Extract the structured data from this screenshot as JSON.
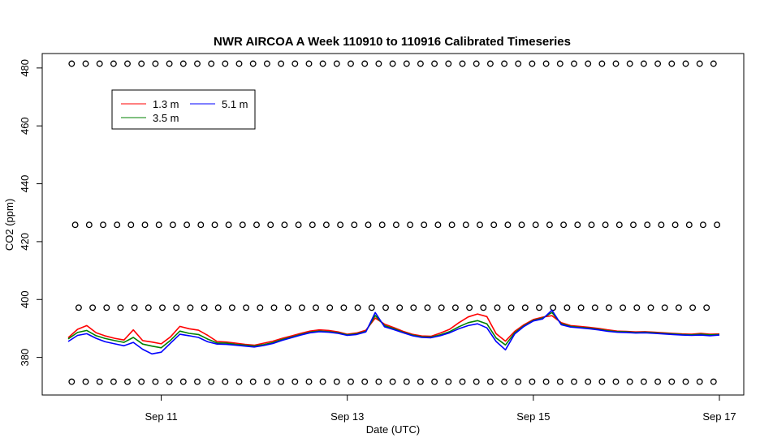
{
  "chart_data": {
    "type": "line",
    "title": "NWR AIRCOA A  Week 110910 to 110916  Calibrated Timeseries",
    "xlabel": "Date (UTC)",
    "ylabel": "CO2 (ppm)",
    "xlim": [
      "2011-09-10 00:00",
      "2011-09-17 00:00"
    ],
    "ylim": [
      367,
      485
    ],
    "x_ticks": [
      {
        "value": "2011-09-11",
        "label": "Sep 11"
      },
      {
        "value": "2011-09-13",
        "label": "Sep 13"
      },
      {
        "value": "2011-09-15",
        "label": "Sep 15"
      },
      {
        "value": "2011-09-17",
        "label": "Sep 17"
      }
    ],
    "y_ticks": [
      380,
      400,
      420,
      440,
      460,
      480
    ],
    "grid": false,
    "legend": {
      "position": "top-left",
      "entries": [
        {
          "label": "1.3 m",
          "color": "#ff0000"
        },
        {
          "label": "3.5 m",
          "color": "#008000"
        },
        {
          "label": "5.1 m",
          "color": "#0000ff"
        }
      ]
    },
    "reference_points": {
      "marker": "open-circle",
      "color": "#000000",
      "levels_ppm": [
        481.5,
        425.8,
        397.2,
        371.6
      ]
    },
    "series": [
      {
        "name": "1.3 m",
        "color": "#ff0000",
        "points": [
          [
            "2011-09-10 00:00",
            386.8
          ],
          [
            "2011-09-10 02:24",
            389.7
          ],
          [
            "2011-09-10 04:48",
            391.0
          ],
          [
            "2011-09-10 07:12",
            388.5
          ],
          [
            "2011-09-10 09:36",
            387.4
          ],
          [
            "2011-09-10 12:00",
            386.6
          ],
          [
            "2011-09-10 14:24",
            386.0
          ],
          [
            "2011-09-10 16:48",
            389.5
          ],
          [
            "2011-09-10 19:12",
            385.8
          ],
          [
            "2011-09-10 21:36",
            385.3
          ],
          [
            "2011-09-11 00:00",
            384.7
          ],
          [
            "2011-09-11 02:24",
            387.1
          ],
          [
            "2011-09-11 04:48",
            390.7
          ],
          [
            "2011-09-11 07:12",
            389.9
          ],
          [
            "2011-09-11 09:36",
            389.4
          ],
          [
            "2011-09-11 12:00",
            387.6
          ],
          [
            "2011-09-11 14:24",
            385.5
          ],
          [
            "2011-09-11 16:48",
            385.3
          ],
          [
            "2011-09-11 19:12",
            384.9
          ],
          [
            "2011-09-11 21:36",
            384.5
          ],
          [
            "2011-09-12 00:00",
            384.2
          ],
          [
            "2011-09-12 02:24",
            384.9
          ],
          [
            "2011-09-12 04:48",
            385.6
          ],
          [
            "2011-09-12 07:12",
            386.6
          ],
          [
            "2011-09-12 09:36",
            387.4
          ],
          [
            "2011-09-12 12:00",
            388.3
          ],
          [
            "2011-09-12 14:24",
            389.1
          ],
          [
            "2011-09-12 16:48",
            389.5
          ],
          [
            "2011-09-12 19:12",
            389.3
          ],
          [
            "2011-09-12 21:36",
            388.8
          ],
          [
            "2011-09-13 00:00",
            388.0
          ],
          [
            "2011-09-13 02:24",
            388.4
          ],
          [
            "2011-09-13 04:48",
            389.4
          ],
          [
            "2011-09-13 07:12",
            393.6
          ],
          [
            "2011-09-13 09:36",
            391.5
          ],
          [
            "2011-09-13 12:00",
            390.3
          ],
          [
            "2011-09-13 14:24",
            389.0
          ],
          [
            "2011-09-13 16:48",
            388.0
          ],
          [
            "2011-09-13 19:12",
            387.4
          ],
          [
            "2011-09-13 21:36",
            387.3
          ],
          [
            "2011-09-14 00:00",
            388.4
          ],
          [
            "2011-09-14 02:24",
            389.7
          ],
          [
            "2011-09-14 04:48",
            392.0
          ],
          [
            "2011-09-14 07:12",
            394.0
          ],
          [
            "2011-09-14 09:36",
            395.0
          ],
          [
            "2011-09-14 12:00",
            394.1
          ],
          [
            "2011-09-14 14:24",
            388.2
          ],
          [
            "2011-09-14 16:48",
            385.6
          ],
          [
            "2011-09-14 19:12",
            389.0
          ],
          [
            "2011-09-14 21:36",
            391.3
          ],
          [
            "2011-09-15 00:00",
            393.1
          ],
          [
            "2011-09-15 02:24",
            393.9
          ],
          [
            "2011-09-15 04:48",
            394.4
          ],
          [
            "2011-09-15 07:12",
            392.0
          ],
          [
            "2011-09-15 09:36",
            391.0
          ],
          [
            "2011-09-15 12:00",
            390.7
          ],
          [
            "2011-09-15 14:24",
            390.4
          ],
          [
            "2011-09-15 16:48",
            390.0
          ],
          [
            "2011-09-15 19:12",
            389.5
          ],
          [
            "2011-09-15 21:36",
            389.1
          ],
          [
            "2011-09-16 00:00",
            389.0
          ],
          [
            "2011-09-16 02:24",
            388.8
          ],
          [
            "2011-09-16 04:48",
            388.9
          ],
          [
            "2011-09-16 07:12",
            388.7
          ],
          [
            "2011-09-16 09:36",
            388.5
          ],
          [
            "2011-09-16 12:00",
            388.3
          ],
          [
            "2011-09-16 14:24",
            388.1
          ],
          [
            "2011-09-16 16:48",
            388.0
          ],
          [
            "2011-09-16 19:12",
            388.3
          ],
          [
            "2011-09-16 21:36",
            388.0
          ],
          [
            "2011-09-17 00:00",
            388.1
          ]
        ]
      },
      {
        "name": "3.5 m",
        "color": "#008000",
        "points": [
          [
            "2011-09-10 00:00",
            386.4
          ],
          [
            "2011-09-10 02:24",
            388.6
          ],
          [
            "2011-09-10 04:48",
            389.3
          ],
          [
            "2011-09-10 07:12",
            387.5
          ],
          [
            "2011-09-10 09:36",
            386.5
          ],
          [
            "2011-09-10 12:00",
            385.8
          ],
          [
            "2011-09-10 14:24",
            385.2
          ],
          [
            "2011-09-10 16:48",
            386.9
          ],
          [
            "2011-09-10 19:12",
            384.6
          ],
          [
            "2011-09-10 21:36",
            383.9
          ],
          [
            "2011-09-11 00:00",
            383.3
          ],
          [
            "2011-09-11 02:24",
            385.9
          ],
          [
            "2011-09-11 04:48",
            389.1
          ],
          [
            "2011-09-11 07:12",
            388.3
          ],
          [
            "2011-09-11 09:36",
            387.9
          ],
          [
            "2011-09-11 12:00",
            386.3
          ],
          [
            "2011-09-11 14:24",
            385.0
          ],
          [
            "2011-09-11 16:48",
            384.9
          ],
          [
            "2011-09-11 19:12",
            384.5
          ],
          [
            "2011-09-11 21:36",
            384.2
          ],
          [
            "2011-09-12 00:00",
            383.9
          ],
          [
            "2011-09-12 02:24",
            384.4
          ],
          [
            "2011-09-12 04:48",
            385.1
          ],
          [
            "2011-09-12 07:12",
            386.2
          ],
          [
            "2011-09-12 09:36",
            387.0
          ],
          [
            "2011-09-12 12:00",
            387.9
          ],
          [
            "2011-09-12 14:24",
            388.7
          ],
          [
            "2011-09-12 16:48",
            389.1
          ],
          [
            "2011-09-12 19:12",
            388.9
          ],
          [
            "2011-09-12 21:36",
            388.5
          ],
          [
            "2011-09-13 00:00",
            387.8
          ],
          [
            "2011-09-13 02:24",
            388.1
          ],
          [
            "2011-09-13 04:48",
            389.0
          ],
          [
            "2011-09-13 07:12",
            394.5
          ],
          [
            "2011-09-13 09:36",
            391.0
          ],
          [
            "2011-09-13 12:00",
            389.9
          ],
          [
            "2011-09-13 14:24",
            388.7
          ],
          [
            "2011-09-13 16:48",
            387.7
          ],
          [
            "2011-09-13 19:12",
            387.1
          ],
          [
            "2011-09-13 21:36",
            387.0
          ],
          [
            "2011-09-14 00:00",
            387.8
          ],
          [
            "2011-09-14 02:24",
            388.9
          ],
          [
            "2011-09-14 04:48",
            390.6
          ],
          [
            "2011-09-14 07:12",
            392.0
          ],
          [
            "2011-09-14 09:36",
            392.7
          ],
          [
            "2011-09-14 12:00",
            391.6
          ],
          [
            "2011-09-14 14:24",
            386.7
          ],
          [
            "2011-09-14 16:48",
            384.3
          ],
          [
            "2011-09-14 19:12",
            388.5
          ],
          [
            "2011-09-14 21:36",
            390.9
          ],
          [
            "2011-09-15 00:00",
            392.8
          ],
          [
            "2011-09-15 02:24",
            393.6
          ],
          [
            "2011-09-15 04:48",
            395.5
          ],
          [
            "2011-09-15 07:12",
            391.6
          ],
          [
            "2011-09-15 09:36",
            390.7
          ],
          [
            "2011-09-15 12:00",
            390.4
          ],
          [
            "2011-09-15 14:24",
            390.1
          ],
          [
            "2011-09-15 16:48",
            389.7
          ],
          [
            "2011-09-15 19:12",
            389.2
          ],
          [
            "2011-09-15 21:36",
            388.9
          ],
          [
            "2011-09-16 00:00",
            388.8
          ],
          [
            "2011-09-16 02:24",
            388.6
          ],
          [
            "2011-09-16 04:48",
            388.7
          ],
          [
            "2011-09-16 07:12",
            388.5
          ],
          [
            "2011-09-16 09:36",
            388.3
          ],
          [
            "2011-09-16 12:00",
            388.1
          ],
          [
            "2011-09-16 14:24",
            387.9
          ],
          [
            "2011-09-16 16:48",
            387.8
          ],
          [
            "2011-09-16 19:12",
            388.0
          ],
          [
            "2011-09-16 21:36",
            387.8
          ],
          [
            "2011-09-17 00:00",
            387.9
          ]
        ]
      },
      {
        "name": "5.1 m",
        "color": "#0000ff",
        "points": [
          [
            "2011-09-10 00:00",
            385.5
          ],
          [
            "2011-09-10 02:24",
            387.6
          ],
          [
            "2011-09-10 04:48",
            388.2
          ],
          [
            "2011-09-10 07:12",
            386.6
          ],
          [
            "2011-09-10 09:36",
            385.4
          ],
          [
            "2011-09-10 12:00",
            384.7
          ],
          [
            "2011-09-10 14:24",
            384.0
          ],
          [
            "2011-09-10 16:48",
            385.2
          ],
          [
            "2011-09-10 19:12",
            382.8
          ],
          [
            "2011-09-10 21:36",
            381.2
          ],
          [
            "2011-09-11 00:00",
            381.8
          ],
          [
            "2011-09-11 02:24",
            384.9
          ],
          [
            "2011-09-11 04:48",
            388.0
          ],
          [
            "2011-09-11 07:12",
            387.5
          ],
          [
            "2011-09-11 09:36",
            386.9
          ],
          [
            "2011-09-11 12:00",
            385.4
          ],
          [
            "2011-09-11 14:24",
            384.6
          ],
          [
            "2011-09-11 16:48",
            384.5
          ],
          [
            "2011-09-11 19:12",
            384.2
          ],
          [
            "2011-09-11 21:36",
            383.9
          ],
          [
            "2011-09-12 00:00",
            383.6
          ],
          [
            "2011-09-12 02:24",
            384.1
          ],
          [
            "2011-09-12 04:48",
            384.8
          ],
          [
            "2011-09-12 07:12",
            385.9
          ],
          [
            "2011-09-12 09:36",
            386.8
          ],
          [
            "2011-09-12 12:00",
            387.7
          ],
          [
            "2011-09-12 14:24",
            388.5
          ],
          [
            "2011-09-12 16:48",
            388.9
          ],
          [
            "2011-09-12 19:12",
            388.7
          ],
          [
            "2011-09-12 21:36",
            388.3
          ],
          [
            "2011-09-13 00:00",
            387.6
          ],
          [
            "2011-09-13 02:24",
            387.9
          ],
          [
            "2011-09-13 04:48",
            388.8
          ],
          [
            "2011-09-13 07:12",
            395.5
          ],
          [
            "2011-09-13 09:36",
            390.6
          ],
          [
            "2011-09-13 12:00",
            389.6
          ],
          [
            "2011-09-13 14:24",
            388.5
          ],
          [
            "2011-09-13 16:48",
            387.5
          ],
          [
            "2011-09-13 19:12",
            386.9
          ],
          [
            "2011-09-13 21:36",
            386.8
          ],
          [
            "2011-09-14 00:00",
            387.5
          ],
          [
            "2011-09-14 02:24",
            388.5
          ],
          [
            "2011-09-14 04:48",
            389.9
          ],
          [
            "2011-09-14 07:12",
            391.0
          ],
          [
            "2011-09-14 09:36",
            391.6
          ],
          [
            "2011-09-14 12:00",
            390.2
          ],
          [
            "2011-09-14 14:24",
            385.5
          ],
          [
            "2011-09-14 16:48",
            382.6
          ],
          [
            "2011-09-14 19:12",
            388.1
          ],
          [
            "2011-09-14 21:36",
            390.7
          ],
          [
            "2011-09-15 00:00",
            392.6
          ],
          [
            "2011-09-15 02:24",
            393.3
          ],
          [
            "2011-09-15 04:48",
            396.3
          ],
          [
            "2011-09-15 07:12",
            391.3
          ],
          [
            "2011-09-15 09:36",
            390.5
          ],
          [
            "2011-09-15 12:00",
            390.2
          ],
          [
            "2011-09-15 14:24",
            389.9
          ],
          [
            "2011-09-15 16:48",
            389.5
          ],
          [
            "2011-09-15 19:12",
            389.0
          ],
          [
            "2011-09-15 21:36",
            388.7
          ],
          [
            "2011-09-16 00:00",
            388.6
          ],
          [
            "2011-09-16 02:24",
            388.4
          ],
          [
            "2011-09-16 04:48",
            388.5
          ],
          [
            "2011-09-16 07:12",
            388.3
          ],
          [
            "2011-09-16 09:36",
            388.1
          ],
          [
            "2011-09-16 12:00",
            387.9
          ],
          [
            "2011-09-16 14:24",
            387.7
          ],
          [
            "2011-09-16 16:48",
            387.6
          ],
          [
            "2011-09-16 19:12",
            387.7
          ],
          [
            "2011-09-16 21:36",
            387.5
          ],
          [
            "2011-09-17 00:00",
            387.7
          ]
        ]
      }
    ]
  }
}
